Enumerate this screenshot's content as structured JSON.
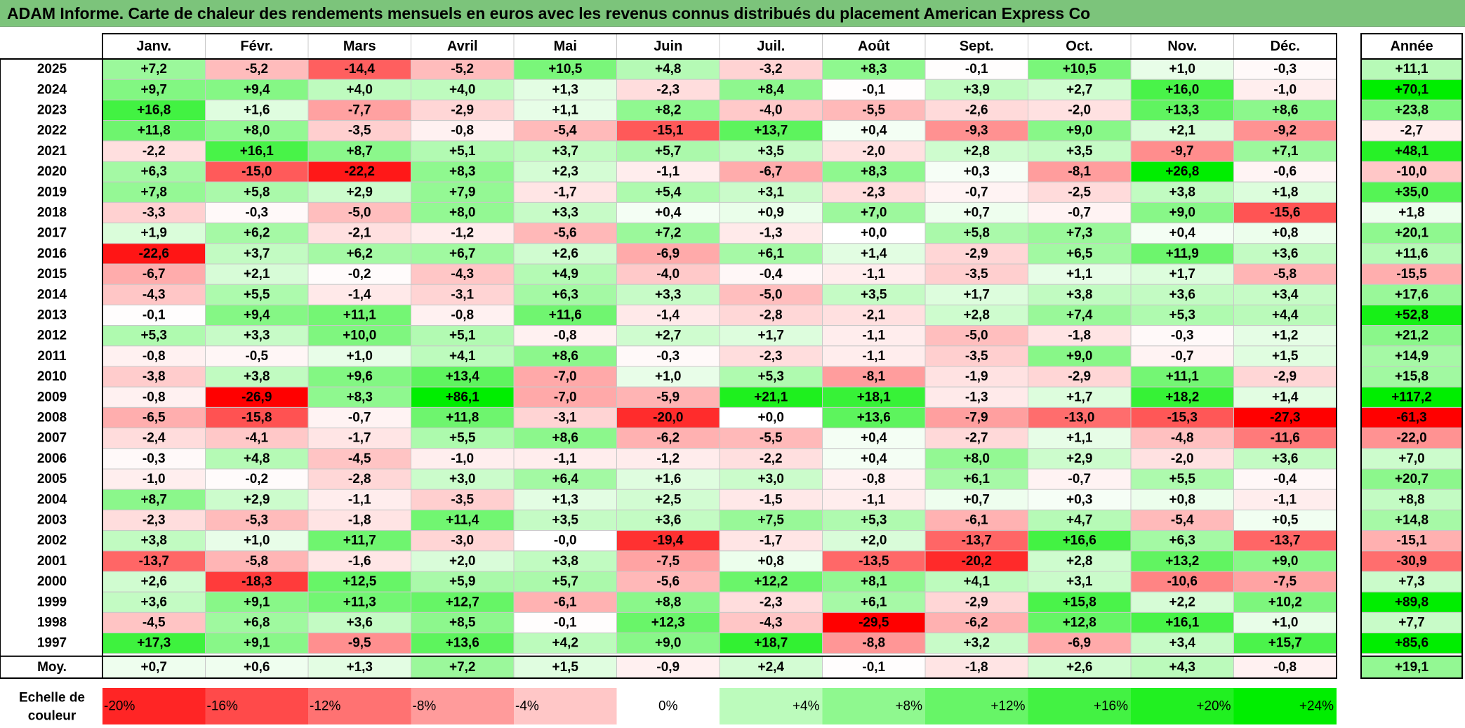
{
  "title": "ADAM Informe. Carte de chaleur des rendements mensuels en euros avec les revenus connus distribués du placement American Express Co",
  "chart_data": {
    "type": "heatmap",
    "title": "ADAM Informe. Carte de chaleur des rendements mensuels en euros avec les revenus connus distribués du placement American Express Co",
    "columns": [
      "Janv.",
      "Févr.",
      "Mars",
      "Avril",
      "Mai",
      "Juin",
      "Juil.",
      "Août",
      "Sept.",
      "Oct.",
      "Nov.",
      "Déc."
    ],
    "year_column_label": "Année",
    "rows": [
      {
        "year": "2025",
        "values": [
          "+7,2",
          "-5,2",
          "-14,4",
          "-5,2",
          "+10,5",
          "+4,8",
          "-3,2",
          "+8,3",
          "-0,1",
          "+10,5",
          "+1,0",
          "-0,3"
        ],
        "annual": "+11,1"
      },
      {
        "year": "2024",
        "values": [
          "+9,7",
          "+9,4",
          "+4,0",
          "+4,0",
          "+1,3",
          "-2,3",
          "+8,4",
          "-0,1",
          "+3,9",
          "+2,7",
          "+16,0",
          "-1,0"
        ],
        "annual": "+70,1"
      },
      {
        "year": "2023",
        "values": [
          "+16,8",
          "+1,6",
          "-7,7",
          "-2,9",
          "+1,1",
          "+8,2",
          "-4,0",
          "-5,5",
          "-2,6",
          "-2,0",
          "+13,3",
          "+8,6"
        ],
        "annual": "+23,8"
      },
      {
        "year": "2022",
        "values": [
          "+11,8",
          "+8,0",
          "-3,5",
          "-0,8",
          "-5,4",
          "-15,1",
          "+13,7",
          "+0,4",
          "-9,3",
          "+9,0",
          "+2,1",
          "-9,2"
        ],
        "annual": "-2,7"
      },
      {
        "year": "2021",
        "values": [
          "-2,2",
          "+16,1",
          "+8,7",
          "+5,1",
          "+3,7",
          "+5,7",
          "+3,5",
          "-2,0",
          "+2,8",
          "+3,5",
          "-9,7",
          "+7,1"
        ],
        "annual": "+48,1"
      },
      {
        "year": "2020",
        "values": [
          "+6,3",
          "-15,0",
          "-22,2",
          "+8,3",
          "+2,3",
          "-1,1",
          "-6,7",
          "+8,3",
          "+0,3",
          "-8,1",
          "+26,8",
          "-0,6"
        ],
        "annual": "-10,0"
      },
      {
        "year": "2019",
        "values": [
          "+7,8",
          "+5,8",
          "+2,9",
          "+7,9",
          "-1,7",
          "+5,4",
          "+3,1",
          "-2,3",
          "-0,7",
          "-2,5",
          "+3,8",
          "+1,8"
        ],
        "annual": "+35,0"
      },
      {
        "year": "2018",
        "values": [
          "-3,3",
          "-0,3",
          "-5,0",
          "+8,0",
          "+3,3",
          "+0,4",
          "+0,9",
          "+7,0",
          "+0,7",
          "-0,7",
          "+9,0",
          "-15,6"
        ],
        "annual": "+1,8"
      },
      {
        "year": "2017",
        "values": [
          "+1,9",
          "+6,2",
          "-2,1",
          "-1,2",
          "-5,6",
          "+7,2",
          "-1,3",
          "+0,0",
          "+5,8",
          "+7,3",
          "+0,4",
          "+0,8"
        ],
        "annual": "+20,1"
      },
      {
        "year": "2016",
        "values": [
          "-22,6",
          "+3,7",
          "+6,2",
          "+6,7",
          "+2,6",
          "-6,9",
          "+6,1",
          "+1,4",
          "-2,9",
          "+6,5",
          "+11,9",
          "+3,6"
        ],
        "annual": "+11,6"
      },
      {
        "year": "2015",
        "values": [
          "-6,7",
          "+2,1",
          "-0,2",
          "-4,3",
          "+4,9",
          "-4,0",
          "-0,4",
          "-1,1",
          "-3,5",
          "+1,1",
          "+1,7",
          "-5,8"
        ],
        "annual": "-15,5"
      },
      {
        "year": "2014",
        "values": [
          "-4,3",
          "+5,5",
          "-1,4",
          "-3,1",
          "+6,3",
          "+3,3",
          "-5,0",
          "+3,5",
          "+1,7",
          "+3,8",
          "+3,6",
          "+3,4"
        ],
        "annual": "+17,6"
      },
      {
        "year": "2013",
        "values": [
          "-0,1",
          "+9,4",
          "+11,1",
          "-0,8",
          "+11,6",
          "-1,4",
          "-2,8",
          "-2,1",
          "+2,8",
          "+7,4",
          "+5,3",
          "+4,4"
        ],
        "annual": "+52,8"
      },
      {
        "year": "2012",
        "values": [
          "+5,3",
          "+3,3",
          "+10,0",
          "+5,1",
          "-0,8",
          "+2,7",
          "+1,7",
          "-1,1",
          "-5,0",
          "-1,8",
          "-0,3",
          "+1,2"
        ],
        "annual": "+21,2"
      },
      {
        "year": "2011",
        "values": [
          "-0,8",
          "-0,5",
          "+1,0",
          "+4,1",
          "+8,6",
          "-0,3",
          "-2,3",
          "-1,1",
          "-3,5",
          "+9,0",
          "-0,7",
          "+1,5"
        ],
        "annual": "+14,9"
      },
      {
        "year": "2010",
        "values": [
          "-3,8",
          "+3,8",
          "+9,6",
          "+13,4",
          "-7,0",
          "+1,0",
          "+5,3",
          "-8,1",
          "-1,9",
          "-2,9",
          "+11,1",
          "-2,9"
        ],
        "annual": "+15,8"
      },
      {
        "year": "2009",
        "values": [
          "-0,8",
          "-26,9",
          "+8,3",
          "+86,1",
          "-7,0",
          "-5,9",
          "+21,1",
          "+18,1",
          "-1,3",
          "+1,7",
          "+18,2",
          "+1,4"
        ],
        "annual": "+117,2"
      },
      {
        "year": "2008",
        "values": [
          "-6,5",
          "-15,8",
          "-0,7",
          "+11,8",
          "-3,1",
          "-20,0",
          "+0,0",
          "+13,6",
          "-7,9",
          "-13,0",
          "-15,3",
          "-27,3"
        ],
        "annual": "-61,3"
      },
      {
        "year": "2007",
        "values": [
          "-2,4",
          "-4,1",
          "-1,7",
          "+5,5",
          "+8,6",
          "-6,2",
          "-5,5",
          "+0,4",
          "-2,7",
          "+1,1",
          "-4,8",
          "-11,6"
        ],
        "annual": "-22,0"
      },
      {
        "year": "2006",
        "values": [
          "-0,3",
          "+4,8",
          "-4,5",
          "-1,0",
          "-1,1",
          "-1,2",
          "-2,2",
          "+0,4",
          "+8,0",
          "+2,9",
          "-2,0",
          "+3,6"
        ],
        "annual": "+7,0"
      },
      {
        "year": "2005",
        "values": [
          "-1,0",
          "-0,2",
          "-2,8",
          "+3,0",
          "+6,4",
          "+1,6",
          "+3,0",
          "-0,8",
          "+6,1",
          "-0,7",
          "+5,5",
          "-0,4"
        ],
        "annual": "+20,7"
      },
      {
        "year": "2004",
        "values": [
          "+8,7",
          "+2,9",
          "-1,1",
          "-3,5",
          "+1,3",
          "+2,5",
          "-1,5",
          "-1,1",
          "+0,7",
          "+0,3",
          "+0,8",
          "-1,1"
        ],
        "annual": "+8,8"
      },
      {
        "year": "2003",
        "values": [
          "-2,3",
          "-5,3",
          "-1,8",
          "+11,4",
          "+3,5",
          "+3,6",
          "+7,5",
          "+5,3",
          "-6,1",
          "+4,7",
          "-5,4",
          "+0,5"
        ],
        "annual": "+14,8"
      },
      {
        "year": "2002",
        "values": [
          "+3,8",
          "+1,0",
          "+11,7",
          "-3,0",
          "-0,0",
          "-19,4",
          "-1,7",
          "+2,0",
          "-13,7",
          "+16,6",
          "+6,3",
          "-13,7"
        ],
        "annual": "-15,1"
      },
      {
        "year": "2001",
        "values": [
          "-13,7",
          "-5,8",
          "-1,6",
          "+2,0",
          "+3,8",
          "-7,5",
          "+0,8",
          "-13,5",
          "-20,2",
          "+2,8",
          "+13,2",
          "+9,0"
        ],
        "annual": "-30,9"
      },
      {
        "year": "2000",
        "values": [
          "+2,6",
          "-18,3",
          "+12,5",
          "+5,9",
          "+5,7",
          "-5,6",
          "+12,2",
          "+8,1",
          "+4,1",
          "+3,1",
          "-10,6",
          "-7,5"
        ],
        "annual": "+7,3"
      },
      {
        "year": "1999",
        "values": [
          "+3,6",
          "+9,1",
          "+11,3",
          "+12,7",
          "-6,1",
          "+8,8",
          "-2,3",
          "+6,1",
          "-2,9",
          "+15,8",
          "+2,2",
          "+10,2"
        ],
        "annual": "+89,8"
      },
      {
        "year": "1998",
        "values": [
          "-4,5",
          "+6,8",
          "+3,6",
          "+8,5",
          "-0,1",
          "+12,3",
          "-4,3",
          "-29,5",
          "-6,2",
          "+12,8",
          "+16,1",
          "+1,0"
        ],
        "annual": "+7,7"
      },
      {
        "year": "1997",
        "values": [
          "+17,3",
          "+9,1",
          "-9,5",
          "+13,6",
          "+4,2",
          "+9,0",
          "+18,7",
          "-8,8",
          "+3,2",
          "-6,9",
          "+3,4",
          "+15,7"
        ],
        "annual": "+85,6"
      }
    ],
    "average_row": {
      "label": "Moy.",
      "values": [
        "+0,7",
        "+0,6",
        "+1,3",
        "+7,2",
        "+1,5",
        "-0,9",
        "+2,4",
        "-0,1",
        "-1,8",
        "+2,6",
        "+4,3",
        "-0,8"
      ],
      "annual": "+19,1"
    },
    "color_scale": {
      "label": "Echelle de couleur",
      "stops": [
        "-20%",
        "-16%",
        "-12%",
        "-8%",
        "-4%",
        "0%",
        "+4%",
        "+8%",
        "+12%",
        "+16%",
        "+20%",
        "+24%"
      ]
    },
    "colors": {
      "negative_max": "#ff0000",
      "neutral": "#ffffff",
      "positive_max": "#00ee00",
      "title_bar": "#7cc47b"
    }
  }
}
